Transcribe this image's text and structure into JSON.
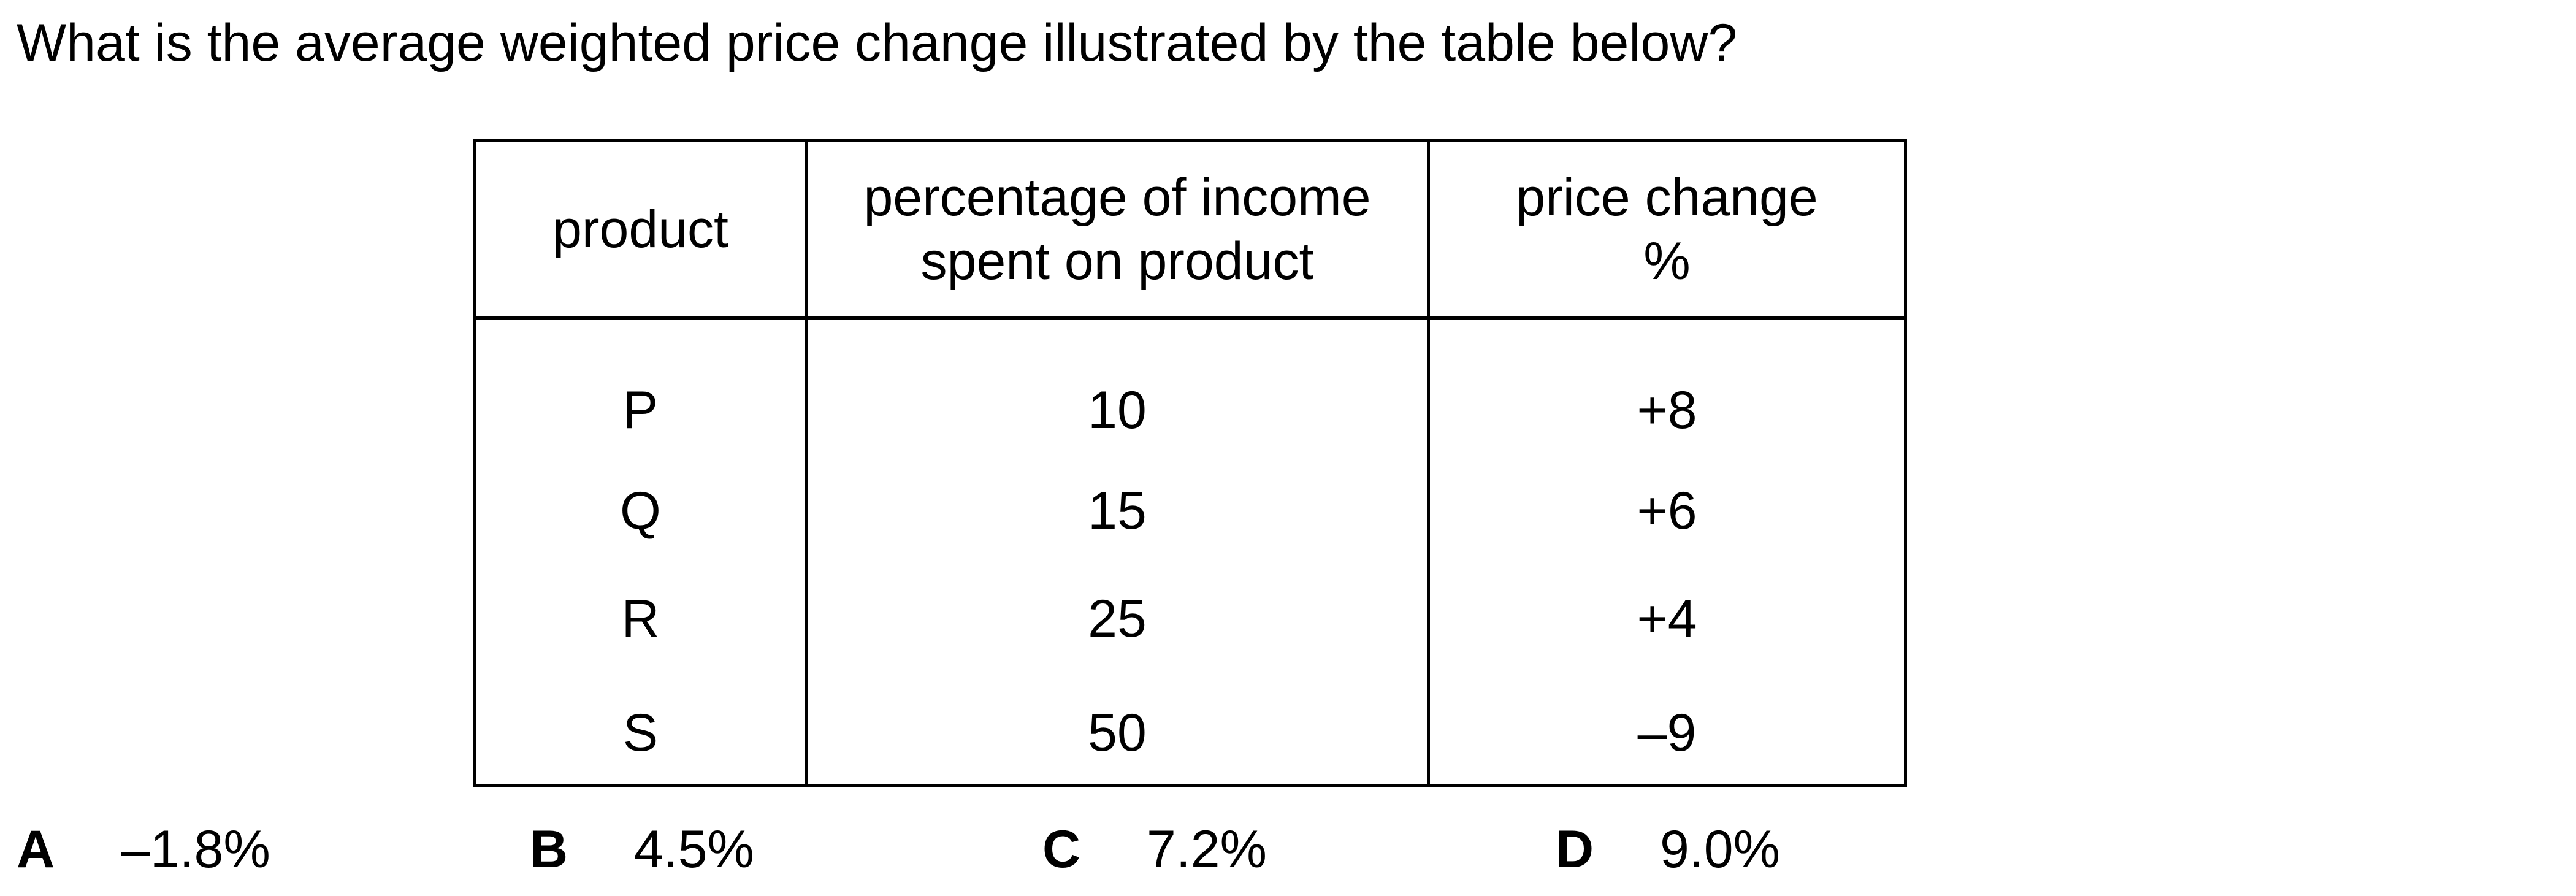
{
  "question": {
    "text": "What is the average weighted price change illustrated by the table below?"
  },
  "table": {
    "headers": [
      {
        "lines": [
          "product"
        ]
      },
      {
        "lines": [
          "percentage of income",
          "spent on product"
        ]
      },
      {
        "lines": [
          "price change",
          "%"
        ]
      }
    ],
    "rows": [
      [
        "P",
        "10",
        "+8"
      ],
      [
        "Q",
        "15",
        "+6"
      ],
      [
        "R",
        "25",
        "+4"
      ],
      [
        "S",
        "50",
        "–9"
      ]
    ]
  },
  "options": [
    {
      "letter": "A",
      "value": "–1.8%"
    },
    {
      "letter": "B",
      "value": "4.5%"
    },
    {
      "letter": "C",
      "value": "7.2%"
    },
    {
      "letter": "D",
      "value": "9.0%"
    }
  ]
}
